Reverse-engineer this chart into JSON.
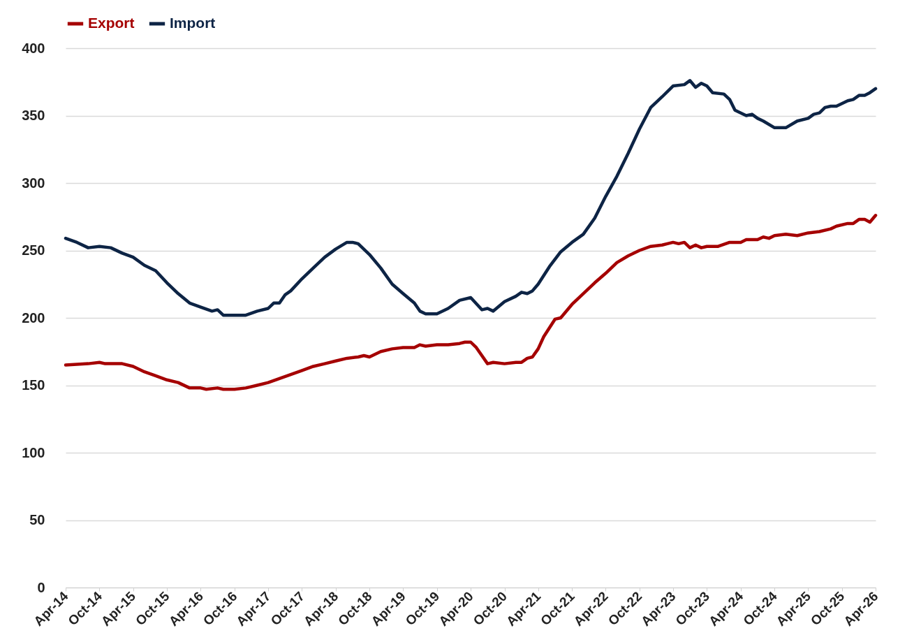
{
  "chart_data": {
    "type": "line",
    "legend": "top",
    "grid": "y",
    "line_style": "solid",
    "marker": "none",
    "xlim": [
      "2014-04",
      "2026-04"
    ],
    "xticks": [
      {
        "value": "2014-04",
        "label": "Apr-14"
      },
      {
        "value": "2014-10",
        "label": "Oct-14"
      },
      {
        "value": "2015-04",
        "label": "Apr-15"
      },
      {
        "value": "2015-10",
        "label": "Oct-15"
      },
      {
        "value": "2016-04",
        "label": "Apr-16"
      },
      {
        "value": "2016-10",
        "label": "Oct-16"
      },
      {
        "value": "2017-04",
        "label": "Apr-17"
      },
      {
        "value": "2017-10",
        "label": "Oct-17"
      },
      {
        "value": "2018-04",
        "label": "Apr-18"
      },
      {
        "value": "2018-10",
        "label": "Oct-18"
      },
      {
        "value": "2019-04",
        "label": "Apr-19"
      },
      {
        "value": "2019-10",
        "label": "Oct-19"
      },
      {
        "value": "2020-04",
        "label": "Apr-20"
      },
      {
        "value": "2020-10",
        "label": "Oct-20"
      },
      {
        "value": "2021-04",
        "label": "Apr-21"
      },
      {
        "value": "2021-10",
        "label": "Oct-21"
      },
      {
        "value": "2022-04",
        "label": "Apr-22"
      },
      {
        "value": "2022-10",
        "label": "Oct-22"
      },
      {
        "value": "2023-04",
        "label": "Apr-23"
      },
      {
        "value": "2023-10",
        "label": "Oct-23"
      },
      {
        "value": "2024-04",
        "label": "Apr-24"
      },
      {
        "value": "2024-10",
        "label": "Oct-24"
      },
      {
        "value": "2025-04",
        "label": "Apr-25"
      },
      {
        "value": "2025-10",
        "label": "Oct-25"
      },
      {
        "value": "2026-04",
        "label": "Apr-26"
      }
    ],
    "ylim": [
      0,
      400
    ],
    "yticks": [
      0,
      50,
      100,
      150,
      200,
      250,
      300,
      350,
      400
    ],
    "series": [
      {
        "name": "Export",
        "color": "#a50000",
        "x": [
          "2014-04",
          "2014-08",
          "2014-10",
          "2014-11",
          "2015-02",
          "2015-04",
          "2015-06",
          "2015-08",
          "2015-10",
          "2015-12",
          "2016-02",
          "2016-04",
          "2016-05",
          "2016-07",
          "2016-08",
          "2016-10",
          "2016-12",
          "2017-02",
          "2017-04",
          "2017-06",
          "2017-08",
          "2017-10",
          "2017-12",
          "2018-02",
          "2018-04",
          "2018-06",
          "2018-08",
          "2018-09",
          "2018-10",
          "2018-12",
          "2019-02",
          "2019-04",
          "2019-06",
          "2019-07",
          "2019-08",
          "2019-10",
          "2019-12",
          "2020-02",
          "2020-03",
          "2020-04",
          "2020-05",
          "2020-07",
          "2020-08",
          "2020-10",
          "2020-12",
          "2021-01",
          "2021-02",
          "2021-03",
          "2021-04",
          "2021-05",
          "2021-07",
          "2021-08",
          "2021-10",
          "2021-12",
          "2022-02",
          "2022-04",
          "2022-06",
          "2022-08",
          "2022-10",
          "2022-12",
          "2023-02",
          "2023-03",
          "2023-04",
          "2023-05",
          "2023-06",
          "2023-07",
          "2023-08",
          "2023-09",
          "2023-10",
          "2023-12",
          "2024-02",
          "2024-04",
          "2024-05",
          "2024-07",
          "2024-08",
          "2024-09",
          "2024-10",
          "2024-12",
          "2025-02",
          "2025-04",
          "2025-06",
          "2025-08",
          "2025-09",
          "2025-11",
          "2025-12",
          "2026-01",
          "2026-02",
          "2026-03",
          "2026-04"
        ],
        "values": [
          165,
          166,
          167,
          166,
          166,
          164,
          160,
          157,
          154,
          152,
          148,
          148,
          147,
          148,
          147,
          147,
          148,
          150,
          152,
          155,
          158,
          161,
          164,
          166,
          168,
          170,
          171,
          172,
          171,
          175,
          177,
          178,
          178,
          180,
          179,
          180,
          180,
          181,
          182,
          182,
          178,
          166,
          167,
          166,
          167,
          167,
          170,
          171,
          177,
          186,
          199,
          200,
          210,
          218,
          226,
          233,
          241,
          246,
          250,
          253,
          254,
          255,
          256,
          255,
          256,
          252,
          254,
          252,
          253,
          253,
          256,
          256,
          258,
          258,
          260,
          259,
          261,
          262,
          261,
          263,
          264,
          266,
          268,
          270,
          270,
          273,
          273,
          271,
          276
        ]
      },
      {
        "name": "Import",
        "color": "#0d2445",
        "x": [
          "2014-04",
          "2014-06",
          "2014-08",
          "2014-10",
          "2014-12",
          "2015-02",
          "2015-04",
          "2015-06",
          "2015-08",
          "2015-10",
          "2015-12",
          "2016-02",
          "2016-04",
          "2016-06",
          "2016-07",
          "2016-08",
          "2016-10",
          "2016-12",
          "2017-02",
          "2017-04",
          "2017-05",
          "2017-06",
          "2017-07",
          "2017-08",
          "2017-10",
          "2017-12",
          "2018-02",
          "2018-04",
          "2018-06",
          "2018-07",
          "2018-08",
          "2018-10",
          "2018-12",
          "2019-02",
          "2019-04",
          "2019-06",
          "2019-07",
          "2019-08",
          "2019-10",
          "2019-12",
          "2020-02",
          "2020-04",
          "2020-06",
          "2020-07",
          "2020-08",
          "2020-10",
          "2020-12",
          "2021-01",
          "2021-02",
          "2021-03",
          "2021-04",
          "2021-06",
          "2021-08",
          "2021-10",
          "2021-12",
          "2022-02",
          "2022-04",
          "2022-06",
          "2022-08",
          "2022-10",
          "2022-12",
          "2023-02",
          "2023-04",
          "2023-06",
          "2023-07",
          "2023-08",
          "2023-09",
          "2023-10",
          "2023-11",
          "2024-01",
          "2024-02",
          "2024-03",
          "2024-05",
          "2024-06",
          "2024-07",
          "2024-08",
          "2024-10",
          "2024-12",
          "2025-02",
          "2025-04",
          "2025-05",
          "2025-06",
          "2025-07",
          "2025-08",
          "2025-09",
          "2025-11",
          "2025-12",
          "2026-01",
          "2026-02",
          "2026-03",
          "2026-04"
        ],
        "values": [
          259,
          256,
          252,
          253,
          252,
          248,
          245,
          239,
          235,
          226,
          218,
          211,
          208,
          205,
          206,
          202,
          202,
          202,
          205,
          207,
          211,
          211,
          217,
          220,
          229,
          237,
          245,
          251,
          256,
          256,
          255,
          247,
          237,
          225,
          218,
          211,
          205,
          203,
          203,
          207,
          213,
          215,
          206,
          207,
          205,
          212,
          216,
          219,
          218,
          220,
          225,
          238,
          249,
          256,
          262,
          274,
          290,
          305,
          322,
          340,
          356,
          364,
          372,
          373,
          376,
          371,
          374,
          372,
          367,
          366,
          362,
          354,
          350,
          351,
          348,
          346,
          341,
          341,
          346,
          348,
          351,
          352,
          356,
          357,
          357,
          361,
          362,
          365,
          365,
          367,
          370
        ]
      }
    ]
  }
}
